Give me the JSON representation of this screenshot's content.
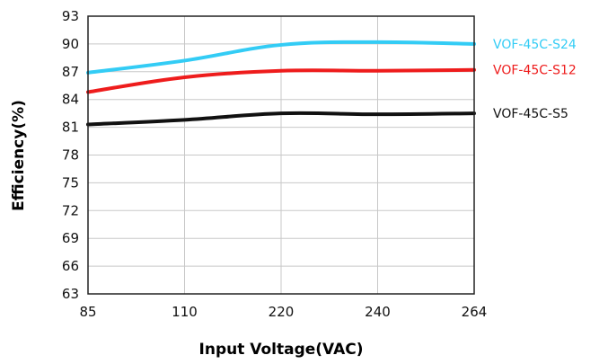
{
  "chart_data": {
    "type": "line",
    "xlabel": "Input Voltage(VAC)",
    "ylabel": "Efficiency(%)",
    "categories": [
      "85",
      "110",
      "220",
      "240",
      "264"
    ],
    "y_ticks": [
      "63",
      "66",
      "69",
      "72",
      "75",
      "78",
      "81",
      "84",
      "87",
      "90",
      "93"
    ],
    "ylim": [
      63,
      93
    ],
    "grid": "on",
    "legend_position": "right",
    "series": [
      {
        "name": "VOF-45C-S24",
        "color": "#33ccf5",
        "values": [
          86.9,
          88.2,
          89.9,
          90.2,
          90.0
        ]
      },
      {
        "name": "VOF-45C-S12",
        "color": "#ee1c1c",
        "values": [
          84.8,
          86.4,
          87.1,
          87.1,
          87.2
        ]
      },
      {
        "name": "VOF-45C-S5",
        "color": "#111111",
        "values": [
          81.3,
          81.8,
          82.5,
          82.4,
          82.5
        ]
      }
    ]
  }
}
